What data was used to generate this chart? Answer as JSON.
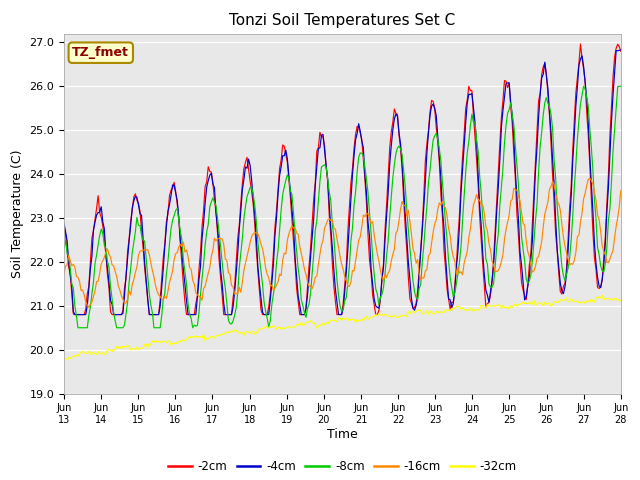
{
  "title": "Tonzi Soil Temperatures Set C",
  "xlabel": "Time",
  "ylabel": "Soil Temperature (C)",
  "ylim": [
    19.0,
    27.2
  ],
  "yticks": [
    19.0,
    20.0,
    21.0,
    22.0,
    23.0,
    24.0,
    25.0,
    26.0,
    27.0
  ],
  "legend_label": "TZ_fmet",
  "series_labels": [
    "-2cm",
    "-4cm",
    "-8cm",
    "-16cm",
    "-32cm"
  ],
  "series_colors": [
    "#ff0000",
    "#0000cc",
    "#00cc00",
    "#ff8800",
    "#ffff00"
  ],
  "bg_color": "#e8e8e8",
  "x_tick_labels": [
    "Jun\n13",
    "Jun\n14",
    "Jun\n15",
    "Jun\n16",
    "Jun\n17",
    "Jun\n18",
    "Jun\n19",
    "Jun\n20",
    "Jun\n21",
    "Jun\n22",
    "Jun\n23",
    "Jun\n24",
    "Jun\n25",
    "Jun\n26",
    "Jun\n27",
    "Jun\n28"
  ]
}
